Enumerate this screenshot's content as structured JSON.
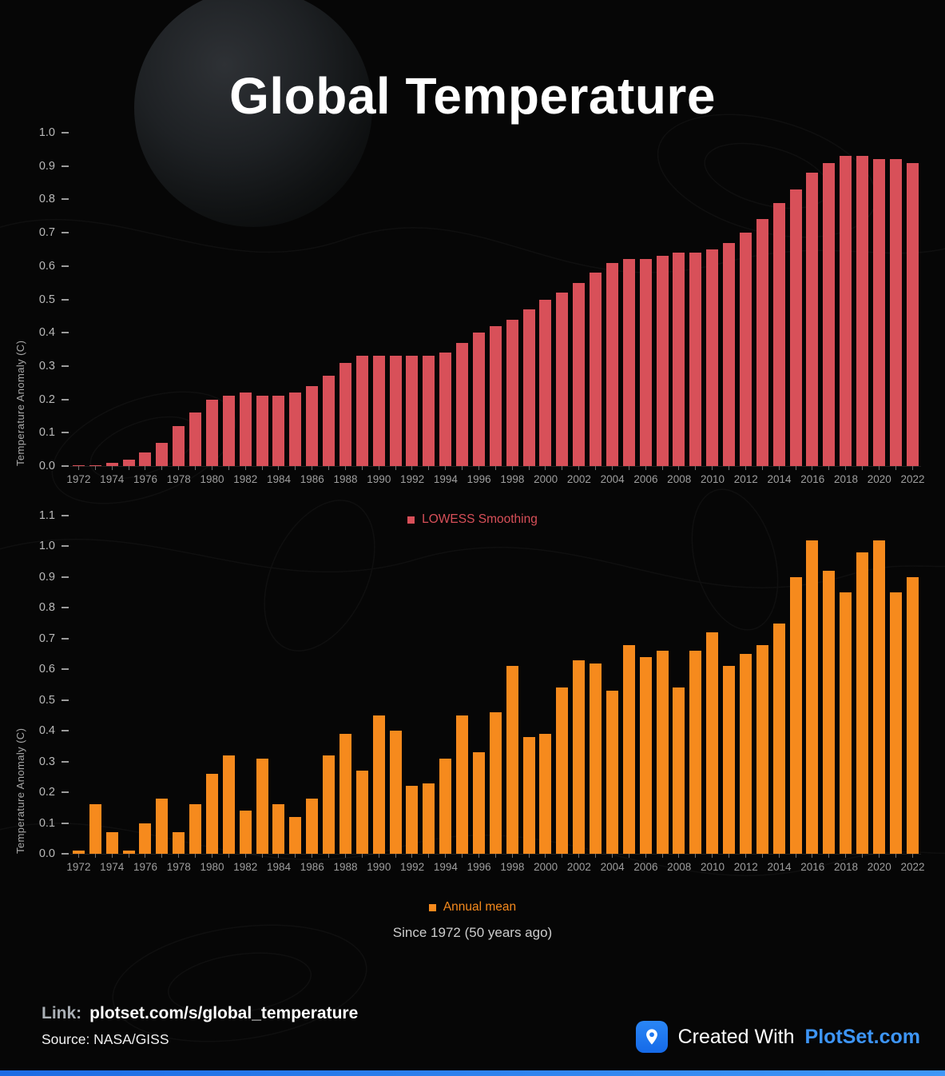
{
  "title": "Global Temperature",
  "caption": "Since 1972 (50 years ago)",
  "footer": {
    "link_label": "Link:",
    "link_value": "plotset.com/s/global_temperature",
    "source": "Source: NASA/GISS",
    "created_with": "Created With",
    "brand": "PlotSet.com",
    "brand_color": "#3d95f7",
    "logo_color": "#1f78f0"
  },
  "chart_data": [
    {
      "type": "bar",
      "name": "lowess-smoothing",
      "ylabel": "Temperature Anomaly (C)",
      "legend": "LOWESS Smoothing",
      "color": "#d85059",
      "ylim": [
        0,
        1.0
      ],
      "ytick_step": 0.1,
      "grid": false,
      "legend_position": "bottom-center",
      "years": [
        1972,
        1973,
        1974,
        1975,
        1976,
        1977,
        1978,
        1979,
        1980,
        1981,
        1982,
        1983,
        1984,
        1985,
        1986,
        1987,
        1988,
        1989,
        1990,
        1991,
        1992,
        1993,
        1994,
        1995,
        1996,
        1997,
        1998,
        1999,
        2000,
        2001,
        2002,
        2003,
        2004,
        2005,
        2006,
        2007,
        2008,
        2009,
        2010,
        2011,
        2012,
        2013,
        2014,
        2015,
        2016,
        2017,
        2018,
        2019,
        2020,
        2021,
        2022
      ],
      "values": [
        0.0,
        0.0,
        0.01,
        0.02,
        0.04,
        0.07,
        0.12,
        0.16,
        0.2,
        0.21,
        0.22,
        0.21,
        0.21,
        0.22,
        0.24,
        0.27,
        0.31,
        0.33,
        0.33,
        0.33,
        0.33,
        0.33,
        0.34,
        0.37,
        0.4,
        0.42,
        0.44,
        0.47,
        0.5,
        0.52,
        0.55,
        0.58,
        0.61,
        0.62,
        0.62,
        0.63,
        0.64,
        0.64,
        0.65,
        0.67,
        0.7,
        0.74,
        0.79,
        0.83,
        0.88,
        0.91,
        0.93,
        0.93,
        0.92,
        0.92,
        0.91
      ]
    },
    {
      "type": "bar",
      "name": "annual-mean",
      "ylabel": "Temperature Anomaly (C)",
      "legend": "Annual mean",
      "color": "#f68a1d",
      "ylim": [
        0,
        1.1
      ],
      "ytick_step": 0.1,
      "grid": false,
      "legend_position": "bottom-center",
      "years": [
        1972,
        1973,
        1974,
        1975,
        1976,
        1977,
        1978,
        1979,
        1980,
        1981,
        1982,
        1983,
        1984,
        1985,
        1986,
        1987,
        1988,
        1989,
        1990,
        1991,
        1992,
        1993,
        1994,
        1995,
        1996,
        1997,
        1998,
        1999,
        2000,
        2001,
        2002,
        2003,
        2004,
        2005,
        2006,
        2007,
        2008,
        2009,
        2010,
        2011,
        2012,
        2013,
        2014,
        2015,
        2016,
        2017,
        2018,
        2019,
        2020,
        2021,
        2022
      ],
      "values": [
        0.01,
        0.16,
        0.07,
        0.01,
        0.1,
        0.18,
        0.07,
        0.16,
        0.26,
        0.32,
        0.14,
        0.31,
        0.16,
        0.12,
        0.18,
        0.32,
        0.39,
        0.27,
        0.45,
        0.4,
        0.22,
        0.23,
        0.31,
        0.45,
        0.33,
        0.46,
        0.61,
        0.38,
        0.39,
        0.54,
        0.63,
        0.62,
        0.53,
        0.68,
        0.64,
        0.66,
        0.54,
        0.66,
        0.72,
        0.61,
        0.65,
        0.68,
        0.75,
        0.9,
        1.02,
        0.92,
        0.85,
        0.98,
        1.02,
        0.85,
        0.9
      ]
    }
  ]
}
